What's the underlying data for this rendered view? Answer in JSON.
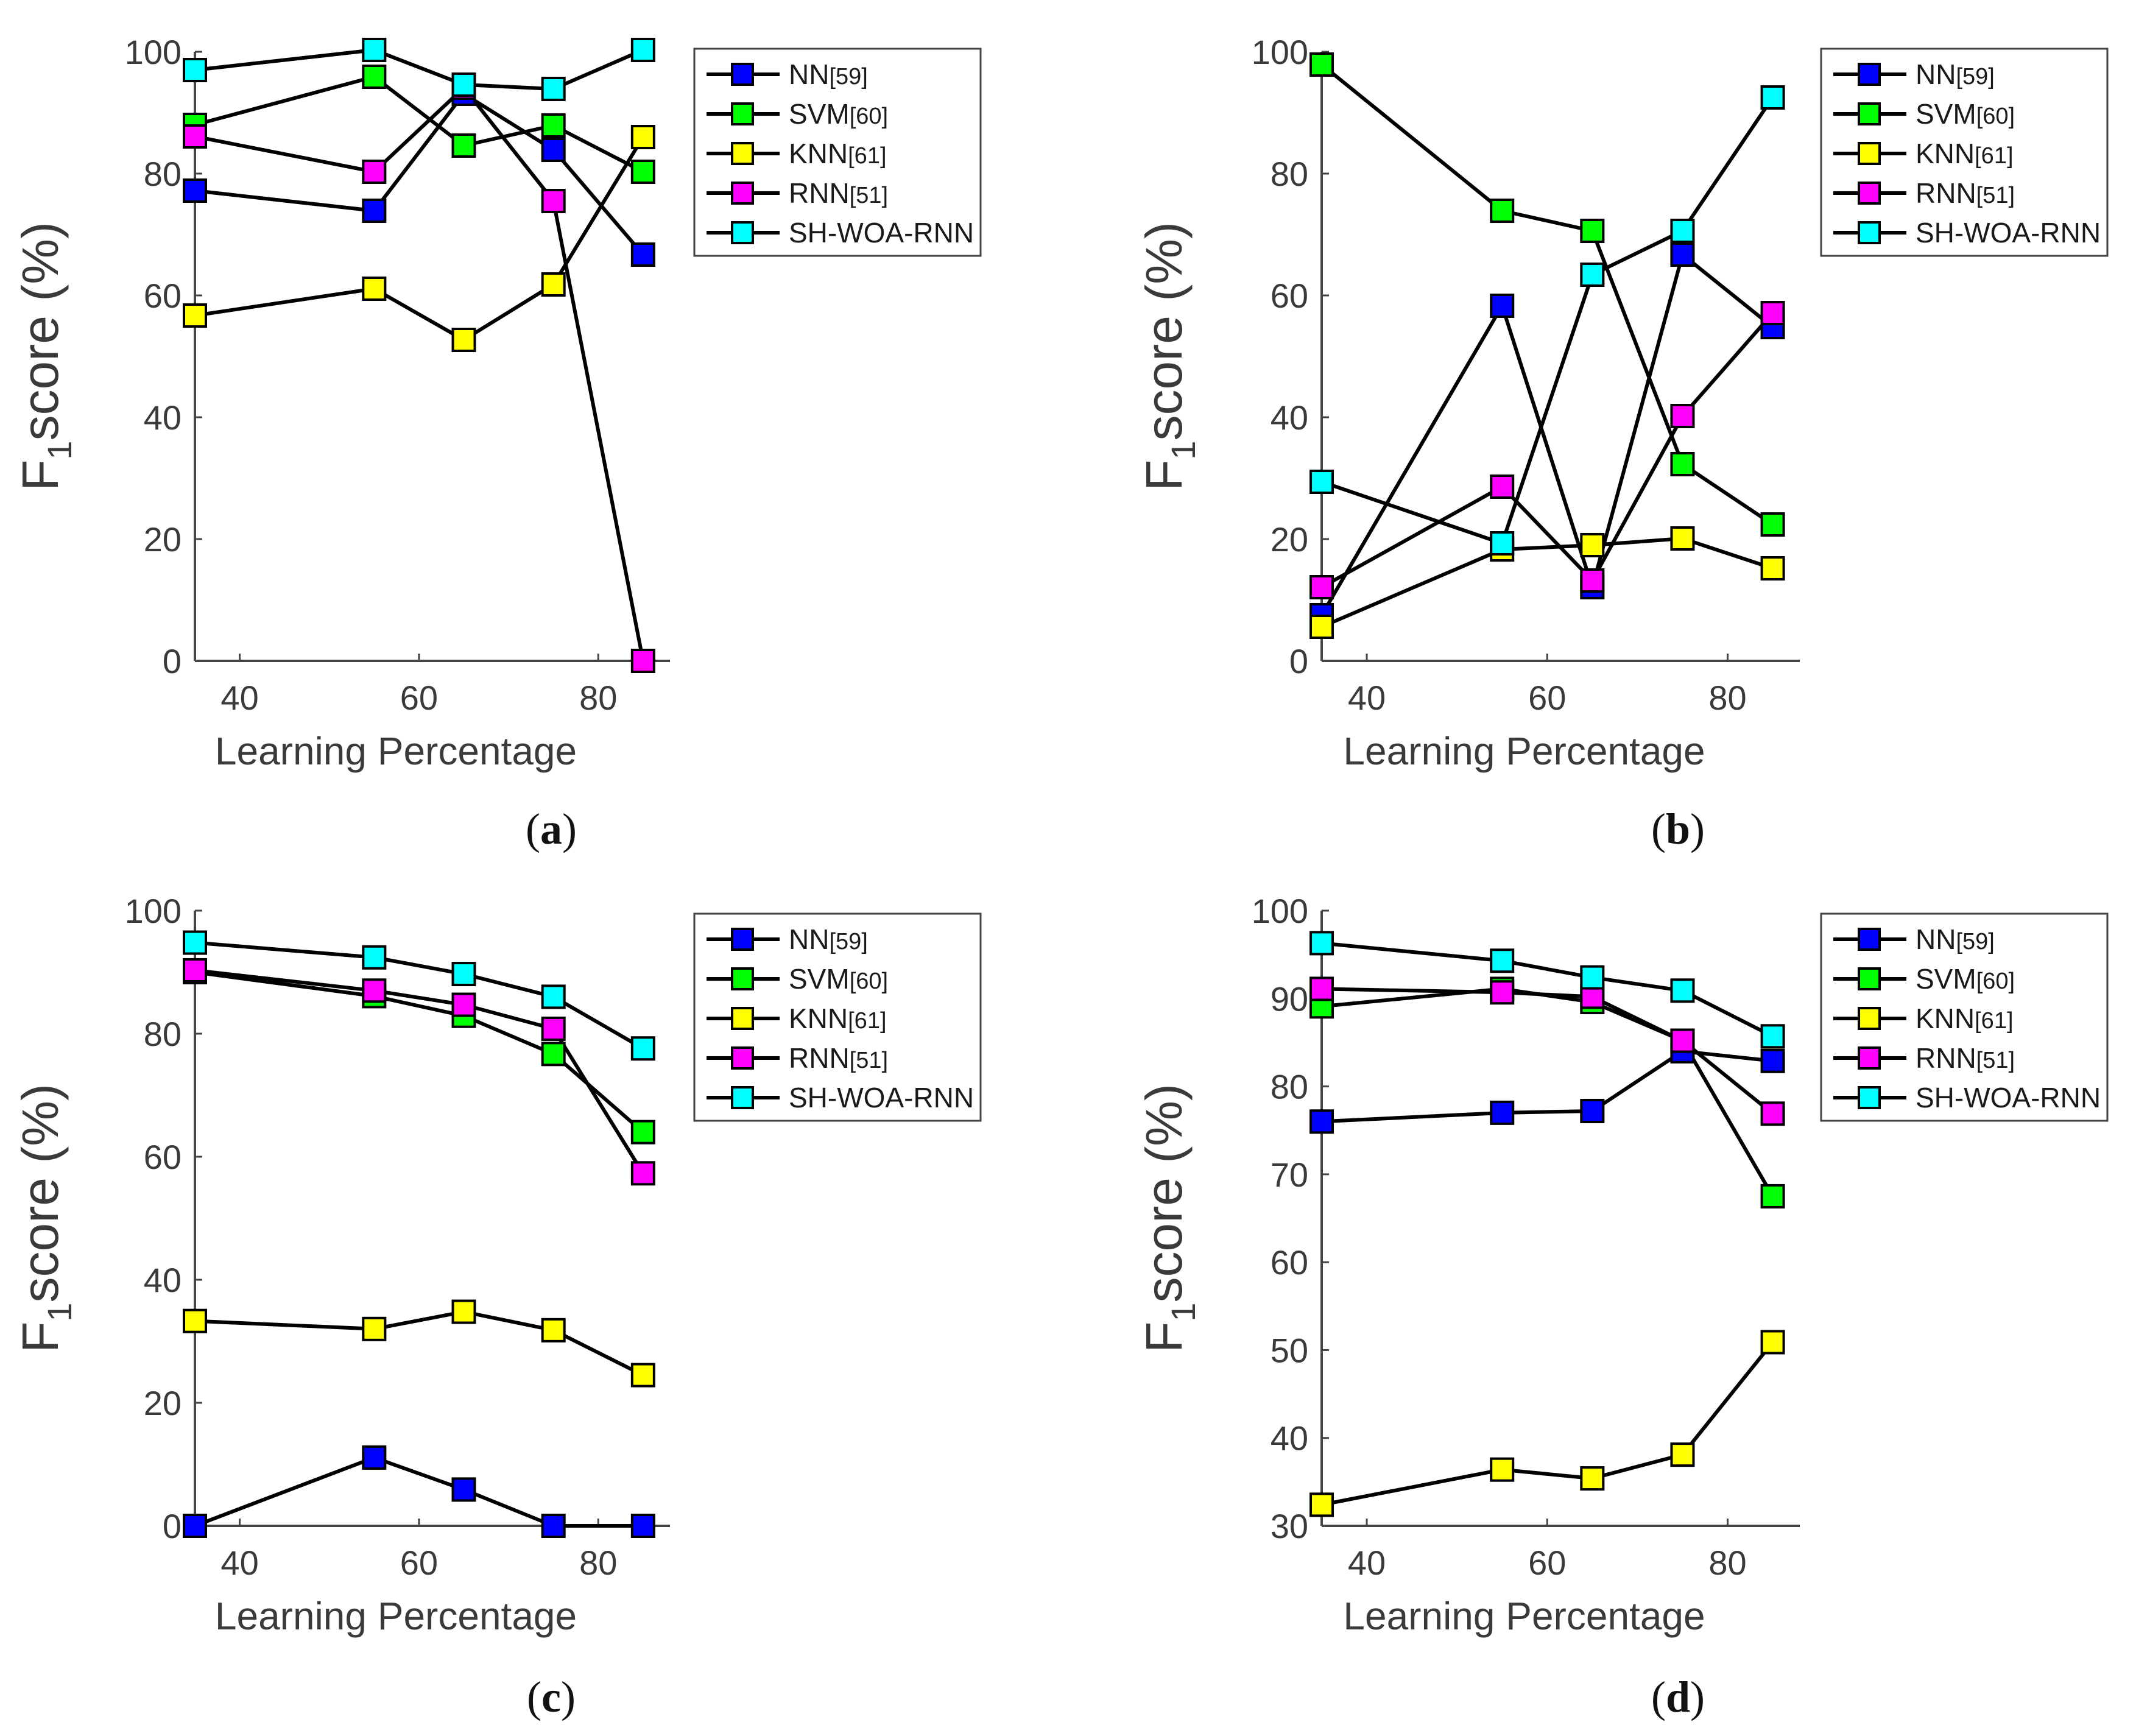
{
  "figure": {
    "xlabel": "Learning Percentage",
    "ylabel_main": "F",
    "ylabel_sub": "1",
    "ylabel_rest": "score (%)",
    "series_colors": {
      "NN": "#0000ff",
      "SVM": "#00ff00",
      "KNN": "#ffff00",
      "RNN": "#ff00ff",
      "SH-WOA-RNN": "#00ffff"
    },
    "line_color": "#000000",
    "legend_entries": [
      {
        "key": "NN",
        "name": "NN",
        "cite": "[59]"
      },
      {
        "key": "SVM",
        "name": "SVM",
        "cite": "[60]"
      },
      {
        "key": "KNN",
        "name": "KNN",
        "cite": "[61]"
      },
      {
        "key": "RNN",
        "name": "RNN",
        "cite": "[51]"
      },
      {
        "key": "SH-WOA-RNN",
        "name": "SH-WOA-RNN",
        "cite": ""
      }
    ]
  },
  "chart_data": [
    {
      "type": "line",
      "caption": "a",
      "x": [
        35,
        55,
        65,
        75,
        85
      ],
      "xticks": [
        40,
        60,
        80
      ],
      "xlim": [
        35,
        88
      ],
      "ylim": [
        0,
        100
      ],
      "yticks": [
        0,
        20,
        40,
        60,
        80,
        100
      ],
      "xlabel": "Learning Percentage",
      "ylabel": "F1 score (%)",
      "series": [
        {
          "name": "NN[59]",
          "key": "NN",
          "values": [
            77.2,
            73.9,
            93.1,
            83.9,
            66.7
          ]
        },
        {
          "name": "SVM[60]",
          "key": "SVM",
          "values": [
            88.0,
            95.9,
            84.6,
            87.9,
            80.3
          ]
        },
        {
          "name": "KNN[61]",
          "key": "KNN",
          "values": [
            56.7,
            61.1,
            52.7,
            61.8,
            86.0
          ]
        },
        {
          "name": "RNN[51]",
          "key": "RNN",
          "values": [
            86.1,
            80.3,
            94.1,
            75.5,
            0.0
          ]
        },
        {
          "name": "SH-WOA-RNN",
          "key": "SH-WOA-RNN",
          "values": [
            97.0,
            100.3,
            94.6,
            93.9,
            100.3
          ]
        }
      ]
    },
    {
      "type": "line",
      "caption": "b",
      "x": [
        35,
        55,
        65,
        75,
        85
      ],
      "xticks": [
        40,
        60,
        80
      ],
      "xlim": [
        35,
        88
      ],
      "ylim": [
        0,
        100
      ],
      "yticks": [
        0,
        20,
        40,
        60,
        80,
        100
      ],
      "xlabel": "Learning Percentage",
      "ylabel": "F1 score (%)",
      "series": [
        {
          "name": "NN[59]",
          "key": "NN",
          "values": [
            7.5,
            58.3,
            12.1,
            66.7,
            54.8
          ]
        },
        {
          "name": "SVM[60]",
          "key": "SVM",
          "values": [
            97.9,
            73.9,
            70.6,
            32.3,
            22.4
          ]
        },
        {
          "name": "KNN[61]",
          "key": "KNN",
          "values": [
            5.6,
            18.3,
            19.0,
            20.1,
            15.2
          ]
        },
        {
          "name": "RNN[51]",
          "key": "RNN",
          "values": [
            12.1,
            28.6,
            13.2,
            40.2,
            57.1
          ]
        },
        {
          "name": "SH-WOA-RNN",
          "key": "SH-WOA-RNN",
          "values": [
            29.4,
            19.3,
            63.4,
            70.6,
            92.5
          ]
        }
      ]
    },
    {
      "type": "line",
      "caption": "c",
      "x": [
        35,
        55,
        65,
        75,
        85
      ],
      "xticks": [
        40,
        60,
        80
      ],
      "xlim": [
        35,
        88
      ],
      "ylim": [
        0,
        100
      ],
      "yticks": [
        0,
        20,
        40,
        60,
        80,
        100
      ],
      "xlabel": "Learning Percentage",
      "ylabel": "F1 score (%)",
      "series": [
        {
          "name": "NN[59]",
          "key": "NN",
          "values": [
            0.0,
            11.1,
            5.9,
            0.0,
            0.0
          ]
        },
        {
          "name": "SVM[60]",
          "key": "SVM",
          "values": [
            90.0,
            86.1,
            82.9,
            76.7,
            64.0
          ]
        },
        {
          "name": "KNN[61]",
          "key": "KNN",
          "values": [
            33.3,
            32.0,
            34.8,
            31.8,
            24.5
          ]
        },
        {
          "name": "RNN[51]",
          "key": "RNN",
          "values": [
            90.3,
            87.0,
            84.7,
            80.8,
            57.3
          ]
        },
        {
          "name": "SH-WOA-RNN",
          "key": "SH-WOA-RNN",
          "values": [
            94.8,
            92.4,
            89.7,
            86.0,
            77.6
          ]
        }
      ]
    },
    {
      "type": "line",
      "caption": "d",
      "x": [
        35,
        55,
        65,
        75,
        85
      ],
      "xticks": [
        40,
        60,
        80
      ],
      "xlim": [
        35,
        88
      ],
      "ylim": [
        30,
        100
      ],
      "yticks": [
        30,
        40,
        50,
        60,
        70,
        80,
        90,
        100
      ],
      "xlabel": "Learning Percentage",
      "ylabel": "F1 score (%)",
      "series": [
        {
          "name": "NN[59]",
          "key": "NN",
          "values": [
            76.0,
            77.0,
            77.2,
            84.0,
            82.9
          ]
        },
        {
          "name": "SVM[60]",
          "key": "SVM",
          "values": [
            89.1,
            91.1,
            89.6,
            85.2,
            67.5
          ]
        },
        {
          "name": "KNN[61]",
          "key": "KNN",
          "values": [
            32.4,
            36.4,
            35.4,
            38.1,
            50.9
          ]
        },
        {
          "name": "RNN[51]",
          "key": "RNN",
          "values": [
            91.1,
            90.7,
            90.2,
            85.2,
            76.9
          ]
        },
        {
          "name": "SH-WOA-RNN",
          "key": "SH-WOA-RNN",
          "values": [
            96.3,
            94.3,
            92.4,
            90.9,
            85.7
          ]
        }
      ]
    }
  ]
}
